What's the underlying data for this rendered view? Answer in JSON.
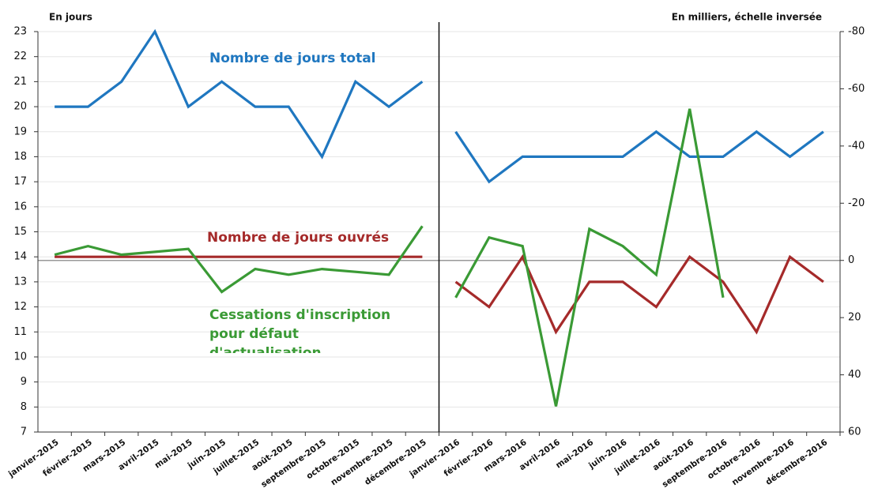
{
  "chart_data": [
    {
      "type": "line",
      "ylabel": "En jours",
      "ylim": [
        7,
        23
      ],
      "yticks": [
        7,
        8,
        9,
        10,
        11,
        12,
        13,
        14,
        15,
        16,
        17,
        18,
        19,
        20,
        21,
        22,
        23
      ],
      "grid": true,
      "categories": [
        "janvier-2015",
        "février-2015",
        "mars-2015",
        "avril-2015",
        "mai-2015",
        "juin-2015",
        "juillet-2015",
        "août-2015",
        "septembre-2015",
        "octobre-2015",
        "novembre-2015",
        "décembre-2015"
      ],
      "series": [
        {
          "name": "Nombre de jours total",
          "color": "#1f77c0",
          "values": [
            20,
            20,
            21,
            23,
            20,
            21,
            20,
            20,
            18,
            21,
            20,
            21
          ]
        },
        {
          "name": "Nombre de jours ouvrés",
          "color": "#a52a2a",
          "values": [
            14,
            14,
            14,
            14,
            14,
            14,
            14,
            14,
            14,
            14,
            14,
            14
          ]
        },
        {
          "name": "Cessations d'inscription pour défaut d'actualisation",
          "color": "#3a9a35",
          "axis": "y2",
          "values": [
            -2,
            -5,
            -2,
            -3,
            -4,
            11,
            3,
            5,
            3,
            4,
            5,
            -12
          ]
        }
      ]
    },
    {
      "type": "line",
      "y2label": "En milliers, échelle inversée",
      "y2lim": [
        -80,
        60
      ],
      "y2ticks": [
        -80,
        -60,
        -40,
        -20,
        0,
        20,
        40,
        60
      ],
      "y2_inverted": true,
      "categories": [
        "janvier-2016",
        "février-2016",
        "mars-2016",
        "avril-2016",
        "mai-2016",
        "juin-2016",
        "juillet-2016",
        "août-2016",
        "septembre-2016",
        "octobre-2016",
        "novembre-2016",
        "décembre-2016"
      ],
      "series": [
        {
          "color": "#1f77c0",
          "values": [
            19,
            17,
            18,
            18,
            18,
            18,
            19,
            18,
            18,
            19,
            18,
            19
          ]
        },
        {
          "color": "#a52a2a",
          "values": [
            13,
            12,
            14,
            11,
            13,
            13,
            12,
            14,
            13,
            11,
            14,
            13
          ]
        },
        {
          "color": "#3a9a35",
          "axis": "y2",
          "values": [
            13,
            -8,
            -5,
            51,
            -11,
            -5,
            5,
            -53,
            13,
            null,
            null,
            null
          ]
        }
      ]
    }
  ]
}
